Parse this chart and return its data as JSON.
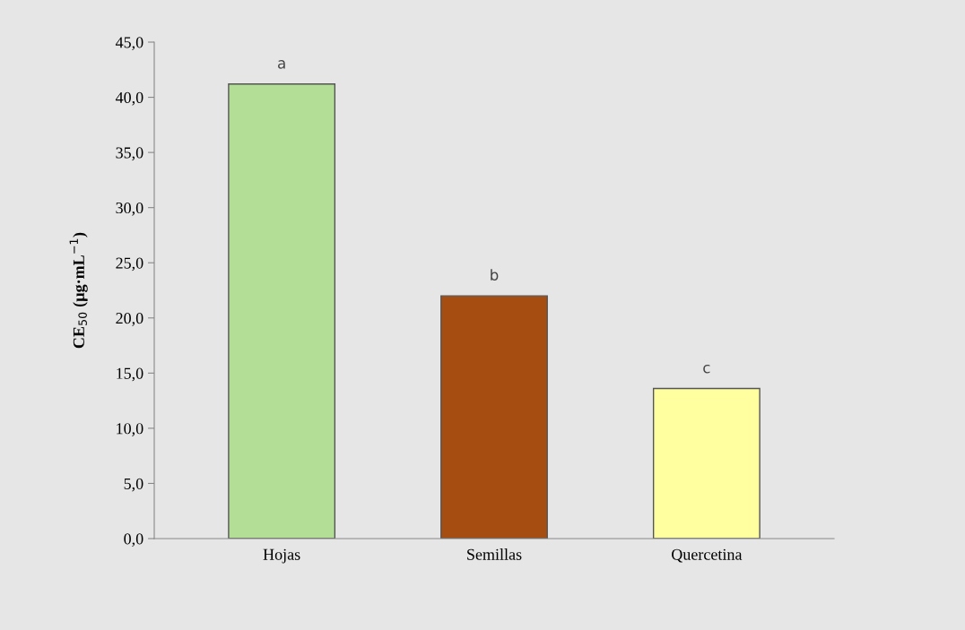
{
  "chart_data": {
    "type": "bar",
    "categories": [
      "Hojas",
      "Semillas",
      "Quercetina"
    ],
    "values": [
      41.2,
      22.0,
      13.6
    ],
    "colors": [
      "#b3de96",
      "#a64d12",
      "#ffffa0"
    ],
    "ylabel": "CE$_{50}$ (µg·mL$^{−1}$)",
    "ylim": [
      0,
      45
    ],
    "yticks": [
      {
        "value": 0,
        "label": "0,0"
      },
      {
        "value": 5,
        "label": "5,0"
      },
      {
        "value": 10,
        "label": "10,0"
      },
      {
        "value": 15,
        "label": "15,0"
      },
      {
        "value": 20,
        "label": "20,0"
      },
      {
        "value": 25,
        "label": "25,0"
      },
      {
        "value": 30,
        "label": "30,0"
      },
      {
        "value": 35,
        "label": "35,0"
      },
      {
        "value": 40,
        "label": "40,0"
      },
      {
        "value": 45,
        "label": "45,0"
      }
    ],
    "annotations": [
      {
        "text": "a",
        "x": "Hojas",
        "y": 41.2
      },
      {
        "text": "b",
        "x": "Semillas",
        "y": 22.0
      },
      {
        "text": "c",
        "x": "Quercetina",
        "y": 13.6
      }
    ],
    "grid": false,
    "legend": false
  }
}
